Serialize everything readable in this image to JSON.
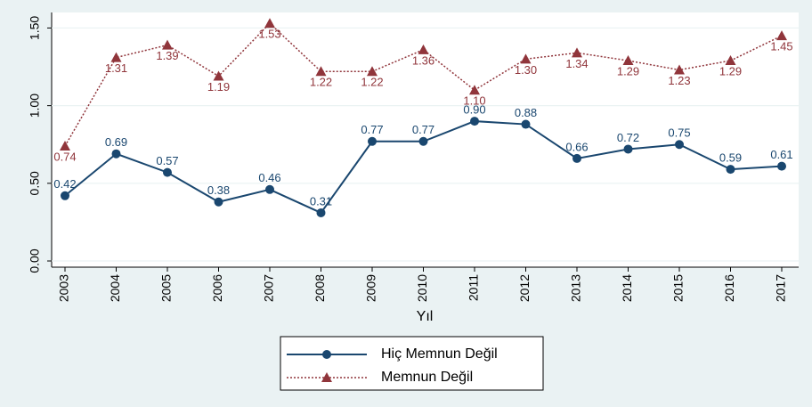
{
  "chart_data": {
    "type": "line",
    "categories": [
      "2003",
      "2004",
      "2005",
      "2006",
      "2007",
      "2008",
      "2009",
      "2010",
      "2011",
      "2012",
      "2013",
      "2014",
      "2015",
      "2016",
      "2017"
    ],
    "series": [
      {
        "name": "Hiç Memnun Değil",
        "color": "#1a476f",
        "marker": "circle",
        "values": [
          0.42,
          0.69,
          0.57,
          0.38,
          0.46,
          0.31,
          0.77,
          0.77,
          0.9,
          0.88,
          0.66,
          0.72,
          0.75,
          0.59,
          0.61
        ],
        "value_labels": [
          "0.42",
          "0.69",
          "0.57",
          "0.38",
          "0.46",
          "0.31",
          "0.77",
          "0.77",
          "0.90",
          "0.88",
          "0.66",
          "0.72",
          "0.75",
          "0.59",
          "0.61"
        ]
      },
      {
        "name": "Memnun Değil",
        "color": "#90353b",
        "marker": "triangle",
        "dash": true,
        "values": [
          0.74,
          1.31,
          1.39,
          1.19,
          1.53,
          1.22,
          1.22,
          1.36,
          1.1,
          1.3,
          1.34,
          1.29,
          1.23,
          1.29,
          1.45
        ],
        "value_labels": [
          "0.74",
          "1.31",
          "1.39",
          "1.19",
          "1.53",
          "1.22",
          "1.22",
          "1.36",
          "1.10",
          "1.30",
          "1.34",
          "1.29",
          "1.23",
          "1.29",
          "1.45"
        ]
      }
    ],
    "x_label": "Yıl",
    "ylim": [
      -0.04,
      1.6
    ],
    "yticks": [
      {
        "value": 0,
        "label": "0.00"
      },
      {
        "value": 0.5,
        "label": "0.50"
      },
      {
        "value": 1,
        "label": "1.00"
      },
      {
        "value": 1.5,
        "label": "1.50"
      }
    ],
    "grid": true
  }
}
